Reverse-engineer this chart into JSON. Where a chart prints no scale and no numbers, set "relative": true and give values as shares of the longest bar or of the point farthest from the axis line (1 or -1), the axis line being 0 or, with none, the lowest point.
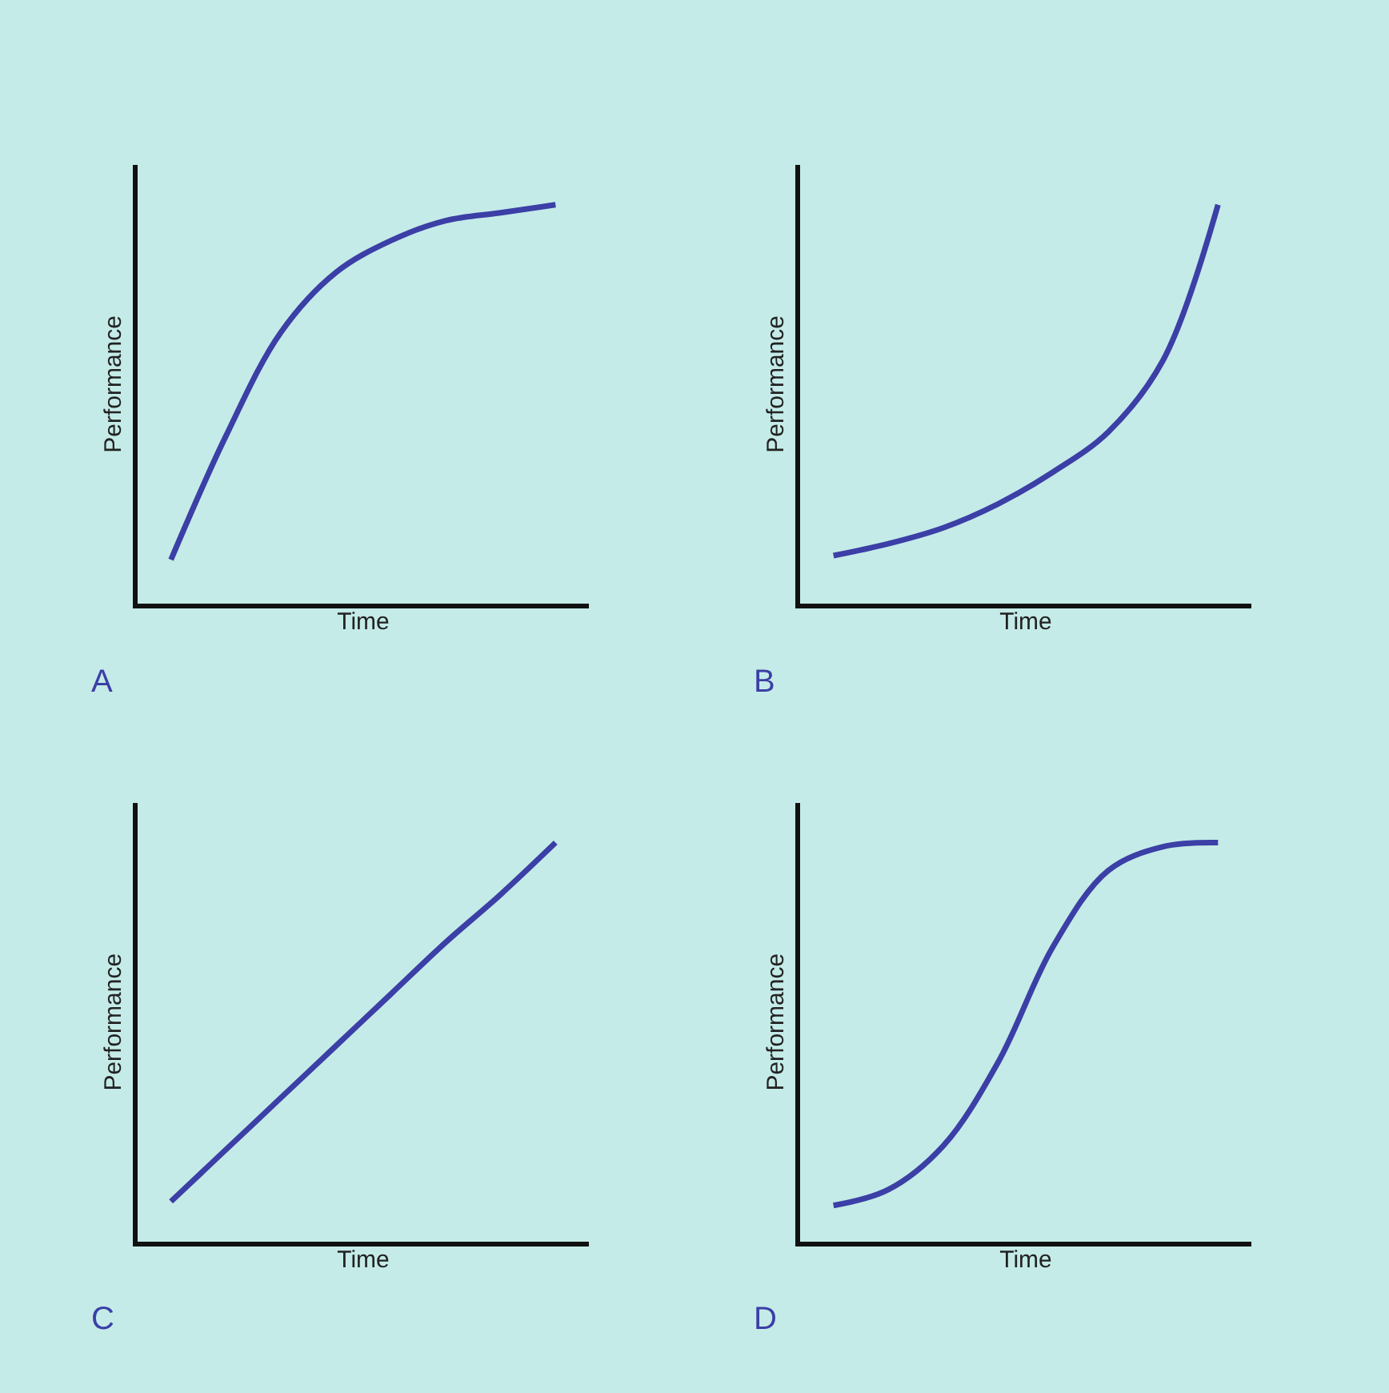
{
  "chart_data": [
    {
      "type": "line",
      "relative": true,
      "xlabel": "Time",
      "ylabel": "Performance",
      "annotations": [
        "A"
      ],
      "grid": false,
      "tick_labels": false,
      "marker": "none",
      "line_style": "solid",
      "categories": [
        null,
        null,
        null,
        null,
        null,
        null,
        null,
        null
      ],
      "series": [
        {
          "color": "#3b3fa6",
          "values": [
            0.11,
            0.42,
            0.68,
            0.83,
            0.91,
            0.96,
            0.98,
            1.0
          ]
        }
      ]
    },
    {
      "type": "line",
      "relative": true,
      "xlabel": "Time",
      "ylabel": "Performance",
      "annotations": [
        "B"
      ],
      "grid": false,
      "tick_labels": false,
      "marker": "none",
      "line_style": "solid",
      "categories": [
        null,
        null,
        null,
        null,
        null,
        null,
        null,
        null
      ],
      "series": [
        {
          "color": "#3b3fa6",
          "values": [
            0.12,
            0.15,
            0.19,
            0.25,
            0.33,
            0.43,
            0.61,
            1.0
          ]
        }
      ]
    },
    {
      "type": "line",
      "relative": true,
      "xlabel": "Time",
      "ylabel": "Performance",
      "annotations": [
        "C"
      ],
      "grid": false,
      "tick_labels": false,
      "marker": "none",
      "line_style": "solid",
      "categories": [
        null,
        null,
        null,
        null,
        null,
        null,
        null,
        null
      ],
      "series": [
        {
          "color": "#3b3fa6",
          "values": [
            0.1,
            0.23,
            0.36,
            0.49,
            0.62,
            0.75,
            0.87,
            1.0
          ]
        }
      ]
    },
    {
      "type": "line",
      "relative": true,
      "xlabel": "Time",
      "ylabel": "Performance",
      "annotations": [
        "D"
      ],
      "grid": false,
      "tick_labels": false,
      "marker": "none",
      "line_style": "solid",
      "categories": [
        null,
        null,
        null,
        null,
        null,
        null,
        null,
        null
      ],
      "series": [
        {
          "color": "#3b3fa6",
          "values": [
            0.09,
            0.13,
            0.24,
            0.45,
            0.74,
            0.93,
            0.99,
            1.0
          ]
        }
      ]
    }
  ]
}
